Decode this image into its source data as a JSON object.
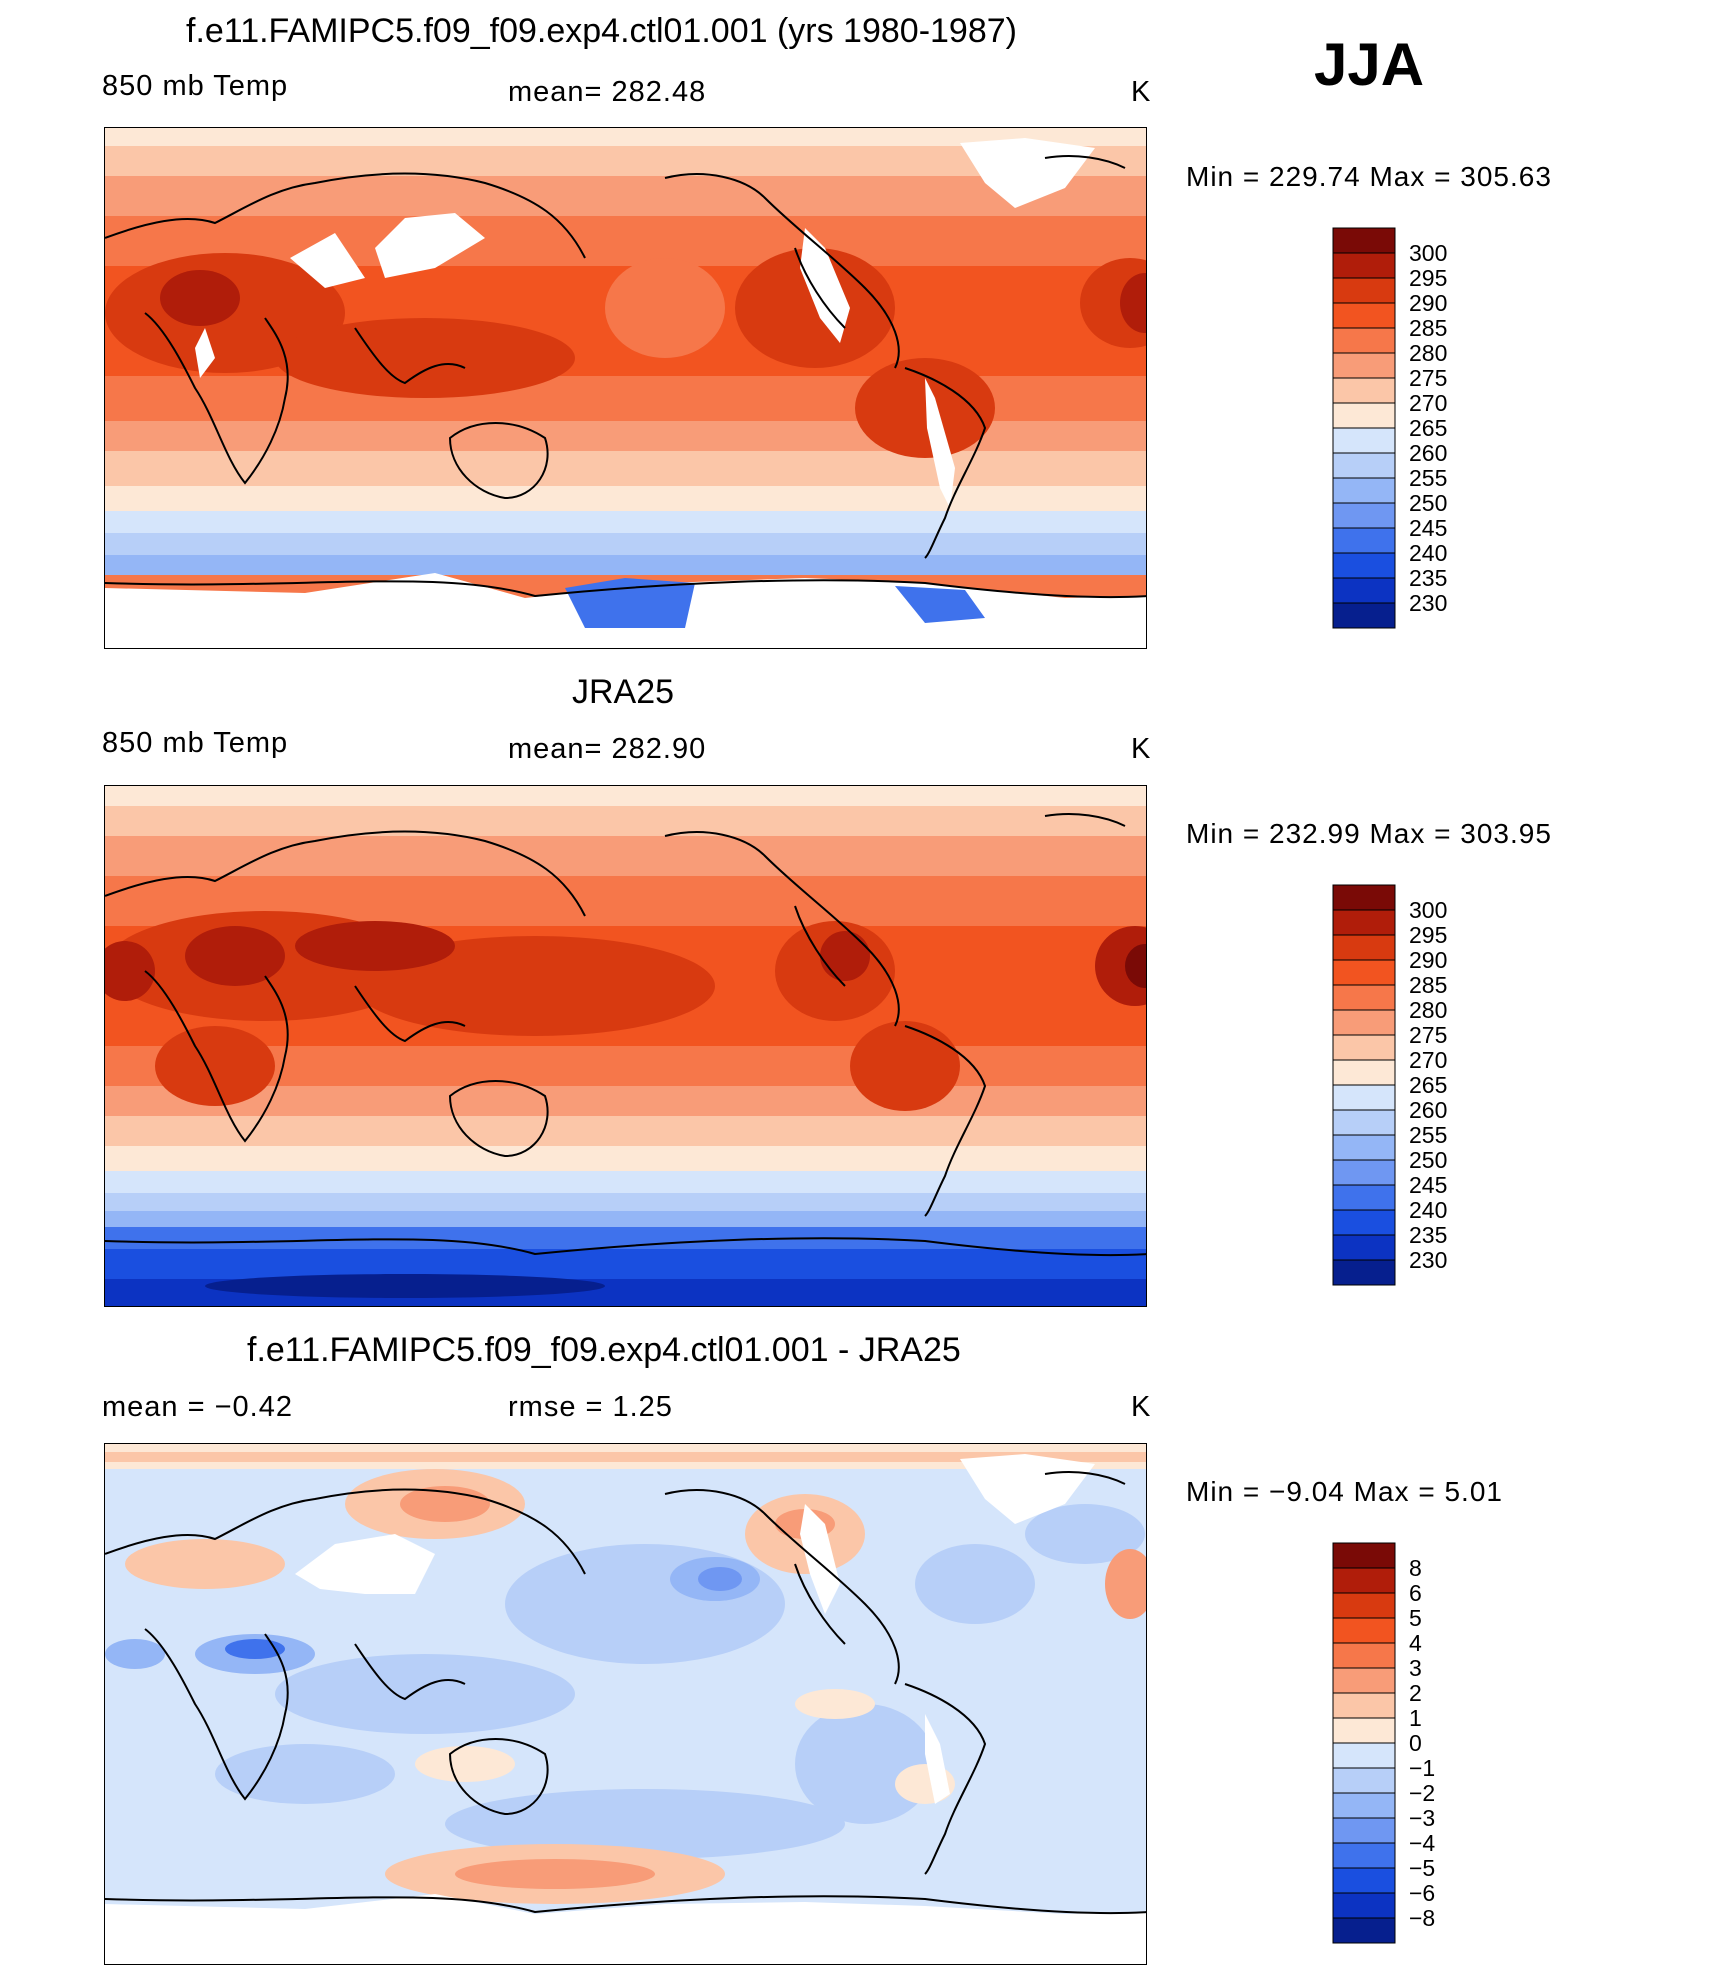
{
  "season": "JJA",
  "panels": [
    {
      "title": "f.e11.FAMIPC5.f09_f09.exp4.ctl01.001 (yrs 1980-1987)",
      "left_label": "850 mb Temp",
      "center_label": "mean=  282.48",
      "units": "K",
      "minmax": "Min  =  229.74  Max  =  305.63",
      "colorbar": {
        "labels": [
          "300",
          "295",
          "290",
          "285",
          "280",
          "275",
          "270",
          "265",
          "260",
          "255",
          "250",
          "245",
          "240",
          "235",
          "230"
        ],
        "colors": [
          "#7a0a06",
          "#b01d0a",
          "#d83a10",
          "#f25420",
          "#f6774a",
          "#f89c78",
          "#fbc6a8",
          "#fde8d6",
          "#d5e5fb",
          "#b7cff8",
          "#94b6f6",
          "#6f97f2",
          "#3f72ec",
          "#1a4fe0",
          "#0c33c2",
          "#061f8e"
        ]
      }
    },
    {
      "title": "JRA25",
      "left_label": "850 mb Temp",
      "center_label": "mean=  282.90",
      "units": "K",
      "minmax": "Min  =  232.99  Max  =  303.95",
      "colorbar": {
        "labels": [
          "300",
          "295",
          "290",
          "285",
          "280",
          "275",
          "270",
          "265",
          "260",
          "255",
          "250",
          "245",
          "240",
          "235",
          "230"
        ],
        "colors": [
          "#7a0a06",
          "#b01d0a",
          "#d83a10",
          "#f25420",
          "#f6774a",
          "#f89c78",
          "#fbc6a8",
          "#fde8d6",
          "#d5e5fb",
          "#b7cff8",
          "#94b6f6",
          "#6f97f2",
          "#3f72ec",
          "#1a4fe0",
          "#0c33c2",
          "#061f8e"
        ]
      }
    },
    {
      "title": "f.e11.FAMIPC5.f09_f09.exp4.ctl01.001 - JRA25",
      "left_label": "mean  =     −0.42",
      "center_label": "rmse  =      1.25",
      "units": "K",
      "minmax": "Min  =    −9.04  Max  =       5.01",
      "colorbar": {
        "labels": [
          "8",
          "6",
          "5",
          "4",
          "3",
          "2",
          "1",
          "0",
          "−1",
          "−2",
          "−3",
          "−4",
          "−5",
          "−6",
          "−8"
        ],
        "colors": [
          "#7a0a06",
          "#b01d0a",
          "#d83a10",
          "#f25420",
          "#f6774a",
          "#f89c78",
          "#fbc6a8",
          "#fde8d6",
          "#d5e5fb",
          "#b7cff8",
          "#94b6f6",
          "#6f97f2",
          "#3f72ec",
          "#1a4fe0",
          "#0c33c2",
          "#061f8e"
        ]
      }
    }
  ]
}
